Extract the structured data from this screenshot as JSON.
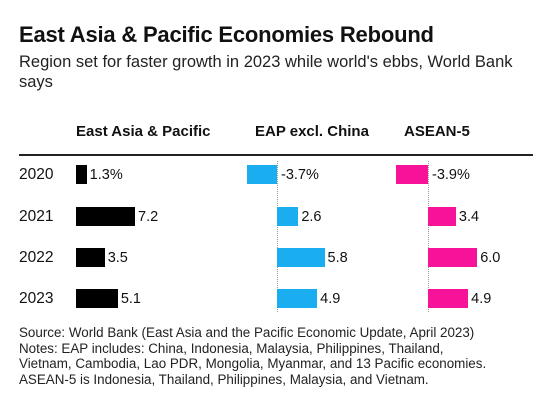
{
  "chart_data": {
    "type": "bar",
    "title": "East Asia & Pacific Economies Rebound",
    "subtitle": "Region set for faster growth in 2023 while world's ebbs, World Bank says",
    "categories": [
      "2020",
      "2021",
      "2022",
      "2023"
    ],
    "series": [
      {
        "name": "East Asia & Pacific",
        "values": [
          1.3,
          7.2,
          3.5,
          5.1
        ],
        "labels": [
          "1.3%",
          "7.2",
          "3.5",
          "5.1"
        ],
        "color": "#000000"
      },
      {
        "name": "EAP excl. China",
        "values": [
          -3.7,
          2.6,
          5.8,
          4.9
        ],
        "labels": [
          "-3.7%",
          "2.6",
          "5.8",
          "4.9"
        ],
        "color": "#1AAEF0"
      },
      {
        "name": "ASEAN-5",
        "values": [
          -3.9,
          3.4,
          6.0,
          4.9
        ],
        "labels": [
          "-3.9%",
          "3.4",
          "6.0",
          "4.9"
        ],
        "color": "#F6139A"
      }
    ],
    "notes": [
      "Source: World Bank (East Asia and the Pacific Economic Update, April 2023)",
      "Notes: EAP includes: China, Indonesia, Malaysia, Philippines, Thailand,",
      "Vietnam, Cambodia, Lao PDR, Mongolia, Myanmar, and 13 Pacific economies.",
      "ASEAN-5 is Indonesia, Thailand, Philippines, Malaysia, and Vietnam."
    ]
  }
}
